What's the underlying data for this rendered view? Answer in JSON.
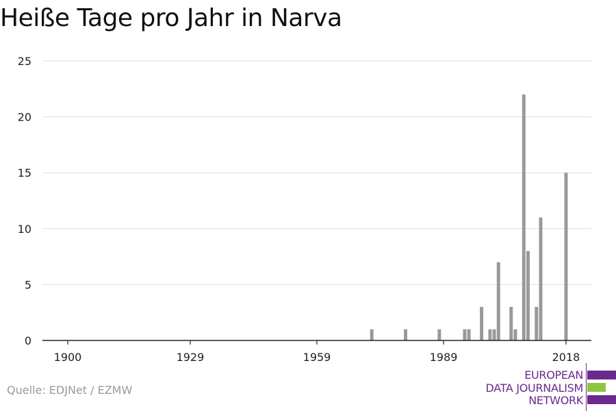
{
  "chart_data": {
    "type": "bar",
    "title": "Heiße Tage pro Jahr in Narva",
    "xlabel": "",
    "ylabel": "",
    "xlim": [
      1894,
      2024
    ],
    "ylim": [
      0,
      25
    ],
    "x_ticks": [
      1900,
      1929,
      1959,
      1989,
      2018
    ],
    "y_ticks": [
      0,
      5,
      10,
      15,
      20,
      25
    ],
    "grid": true,
    "bar_color": "#999999",
    "x": [
      1972,
      1980,
      1988,
      1994,
      1995,
      1998,
      2000,
      2001,
      2002,
      2005,
      2006,
      2008,
      2009,
      2011,
      2012,
      2018
    ],
    "values": [
      1,
      1,
      1,
      1,
      1,
      3,
      1,
      1,
      7,
      3,
      1,
      22,
      8,
      3,
      11,
      15
    ]
  },
  "source": "Quelle: EDJNet / EZMW",
  "logo": {
    "lines": [
      "EUROPEAN",
      "DATA JOURNALISM",
      "NETWORK"
    ],
    "colors": {
      "purple": "#6a2a8e",
      "green": "#8dc63f"
    }
  }
}
